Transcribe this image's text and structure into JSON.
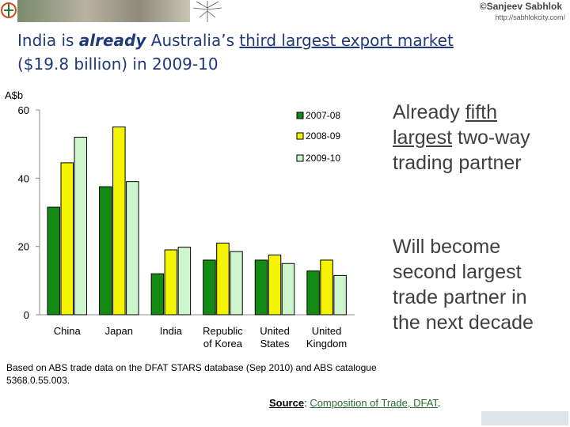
{
  "brand": {
    "name": "©Sanjeev Sabhlok",
    "url": "http://sabhlokcity.com/",
    "signature": "Sanjeev Sabhlok"
  },
  "headline": {
    "part1": "India is ",
    "italic": "already",
    "part2": " Australia’s ",
    "underlined": "third largest export market",
    "line2": "($19.8 billion) in 2009-10"
  },
  "side_notes": {
    "note1_a": "Already ",
    "note1_u1": "fifth",
    "note1_b": " ",
    "note1_u2": "largest",
    "note1_c": " two-way trading partner",
    "note2": "Will become second largest trade partner in the next decade"
  },
  "footnote": "Based on ABS trade data on the DFAT STARS database (Sep 2010) and ABS catalogue 5368.0.55.003.",
  "source": {
    "label": "Source",
    "link": "Composition of Trade, DFAT",
    "tail": "."
  },
  "colors": {
    "s0707": "#138a13",
    "s0809": "#f4f400",
    "s0910": "#ccf5cc",
    "headline": "#1f3a7a"
  },
  "chart_data": {
    "type": "bar",
    "ylabel": "A$b",
    "ylim": [
      0,
      60
    ],
    "yticks": [
      0,
      20,
      40,
      60
    ],
    "grid": false,
    "legend": "top-right",
    "categories": [
      "China",
      "Japan",
      "India",
      "Republic\nof Korea",
      "United\nStates",
      "United\nKingdom"
    ],
    "series": [
      {
        "name": "2007-08",
        "color": "#138a13",
        "values": [
          31.5,
          37.5,
          12.0,
          16.0,
          16.0,
          12.8
        ]
      },
      {
        "name": "2008-09",
        "color": "#f4f400",
        "values": [
          44.5,
          55.0,
          19.0,
          21.0,
          17.5,
          16.0
        ]
      },
      {
        "name": "2009-10",
        "color": "#ccf5cc",
        "values": [
          52.0,
          39.0,
          19.8,
          18.5,
          15.0,
          11.5
        ]
      }
    ]
  }
}
